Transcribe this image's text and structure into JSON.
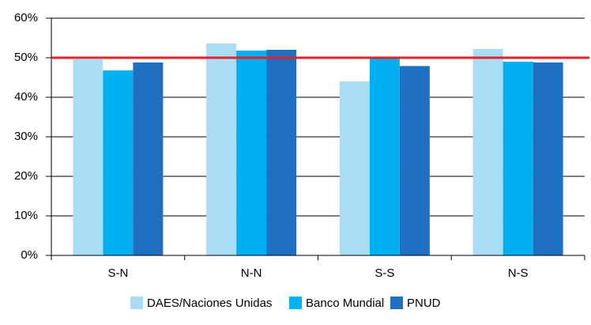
{
  "chart_data": {
    "type": "bar",
    "categories": [
      "S-N",
      "N-N",
      "S-S",
      "N-S"
    ],
    "series": [
      {
        "name": "DAES/Naciones Unidas",
        "color": "#a9dcf5",
        "values": [
          49.6,
          53.6,
          44,
          52.2
        ]
      },
      {
        "name": "Banco Mundial",
        "color": "#00b0f0",
        "values": [
          46.8,
          51.8,
          50.2,
          49
        ]
      },
      {
        "name": "PNUD",
        "color": "#1f70c1",
        "values": [
          48.8,
          52,
          47.9,
          48.8
        ]
      }
    ],
    "ylim": [
      0,
      60
    ],
    "yticks": [
      {
        "value": 0,
        "label": "0%"
      },
      {
        "value": 10,
        "label": "10%"
      },
      {
        "value": 20,
        "label": "20%"
      },
      {
        "value": 30,
        "label": "30%"
      },
      {
        "value": 40,
        "label": "40%"
      },
      {
        "value": 50,
        "label": "50%"
      },
      {
        "value": 60,
        "label": "60%"
      }
    ],
    "grid": true,
    "reference_line": {
      "value": 50,
      "color": "#e8202a"
    },
    "legend": "bottom"
  }
}
